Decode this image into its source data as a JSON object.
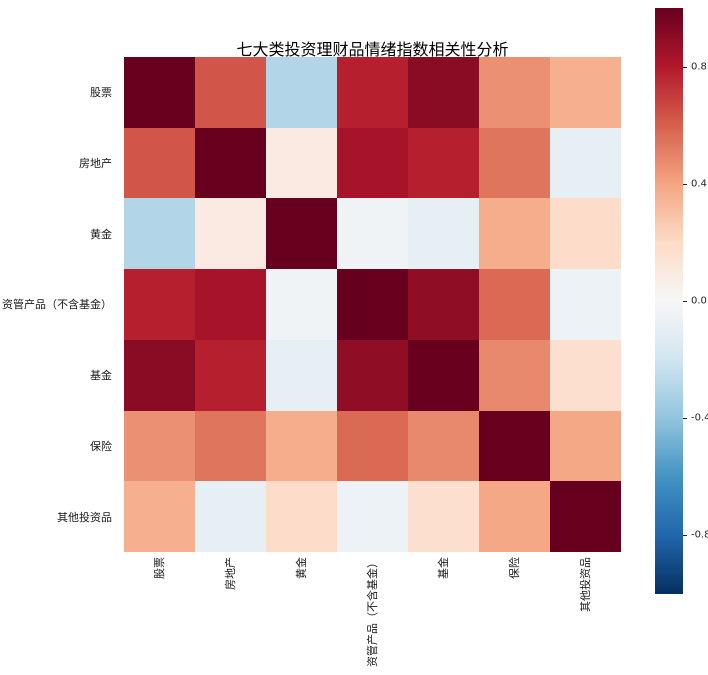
{
  "title": "七大类投资理财品情绪指数相关性分析",
  "chart_data": {
    "type": "heatmap",
    "categories": [
      "股票",
      "房地产",
      "黄金",
      "资管产品（不含基金）",
      "基金",
      "保险",
      "其他投资品"
    ],
    "matrix": [
      [
        1.0,
        0.63,
        -0.3,
        0.78,
        0.91,
        0.46,
        0.36
      ],
      [
        0.63,
        1.0,
        0.09,
        0.83,
        0.78,
        0.54,
        -0.09
      ],
      [
        -0.3,
        0.09,
        1.0,
        -0.04,
        -0.09,
        0.37,
        0.19
      ],
      [
        0.78,
        0.83,
        -0.04,
        1.0,
        0.89,
        0.57,
        -0.06
      ],
      [
        0.91,
        0.78,
        -0.09,
        0.89,
        1.0,
        0.48,
        0.17
      ],
      [
        0.46,
        0.54,
        0.37,
        0.57,
        0.48,
        1.0,
        0.39
      ],
      [
        0.36,
        -0.09,
        0.19,
        -0.06,
        0.17,
        0.39,
        1.0
      ]
    ],
    "vmin": -1,
    "vmax": 1,
    "colormap": "RdBu_r",
    "colormap_anchors_low_to_high": [
      "#053061",
      "#2166ac",
      "#4393c3",
      "#92c5de",
      "#d1e5f0",
      "#f7f7f7",
      "#fddbc7",
      "#f4a582",
      "#d6604d",
      "#b2182b",
      "#67001f"
    ],
    "colorbar": {
      "tick_values": [
        0.8,
        0.4,
        0.0,
        -0.4,
        -0.8
      ],
      "tick_labels": [
        "0.8",
        "0.4",
        "0.0",
        "-0.4",
        "-0.8"
      ]
    },
    "legend_position": "right",
    "grid": false
  },
  "colors": {
    "background": "#ffffff",
    "title_text": "#000000",
    "axis_label_text": "#1a1a1a",
    "colorbar_tick_text": "#262626"
  }
}
